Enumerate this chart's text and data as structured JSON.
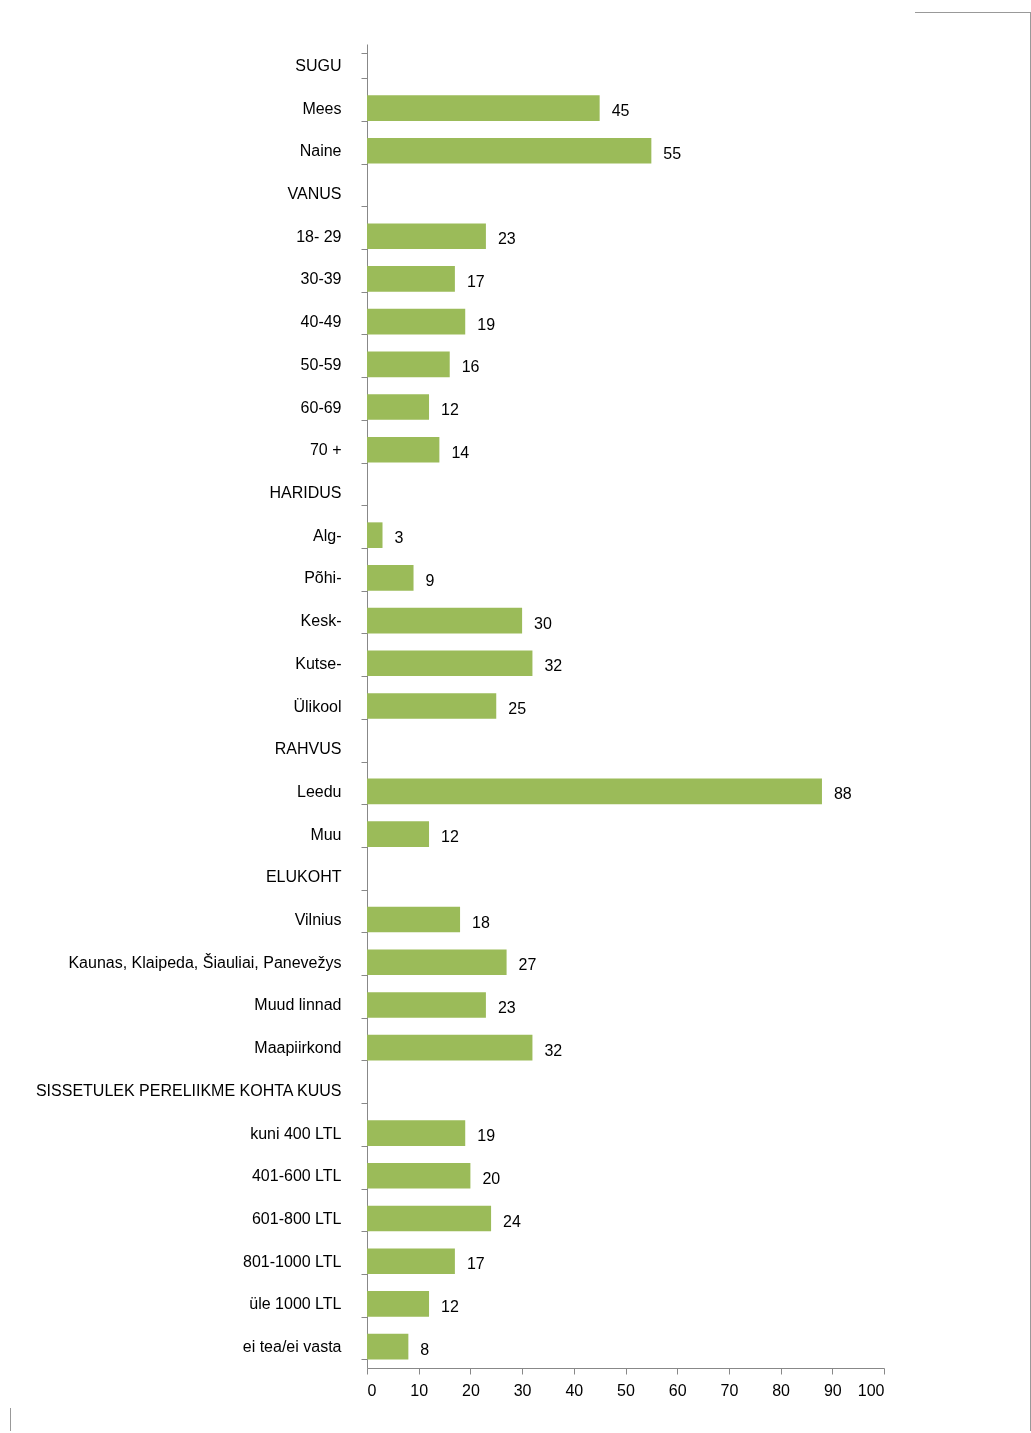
{
  "chart_data": {
    "type": "bar",
    "orientation": "horizontal",
    "categories": [
      "SUGU",
      "Mees",
      "Naine",
      "VANUS",
      "18- 29",
      "30-39",
      "40-49",
      "50-59",
      "60-69",
      "70 +",
      "HARIDUS",
      "Alg-",
      "Põhi-",
      "Kesk-",
      "Kutse-",
      "Ülikool",
      "RAHVUS",
      "Leedu",
      "Muu",
      "ELUKOHT",
      "Vilnius",
      "Kaunas, Klaipeda, Šiauliai, Panevežys",
      "Muud linnad",
      "Maapiirkond",
      "SISSETULEK  PERELIIKME KOHTA KUUS",
      "kuni 400 LTL",
      "401-600 LTL",
      "601-800 LTL",
      "801-1000 LTL",
      "üle 1000 LTL",
      "ei tea/ei vasta"
    ],
    "values": [
      null,
      45,
      55,
      null,
      23,
      17,
      19,
      16,
      12,
      14,
      null,
      3,
      9,
      30,
      32,
      25,
      null,
      88,
      12,
      null,
      18,
      27,
      23,
      32,
      null,
      19,
      20,
      24,
      17,
      12,
      8
    ],
    "color": "#9bbb59",
    "xlim": [
      0,
      100
    ],
    "xticks": [
      0,
      10,
      20,
      30,
      40,
      50,
      60,
      70,
      80,
      90,
      100
    ],
    "data_labels": true,
    "grid": false
  }
}
